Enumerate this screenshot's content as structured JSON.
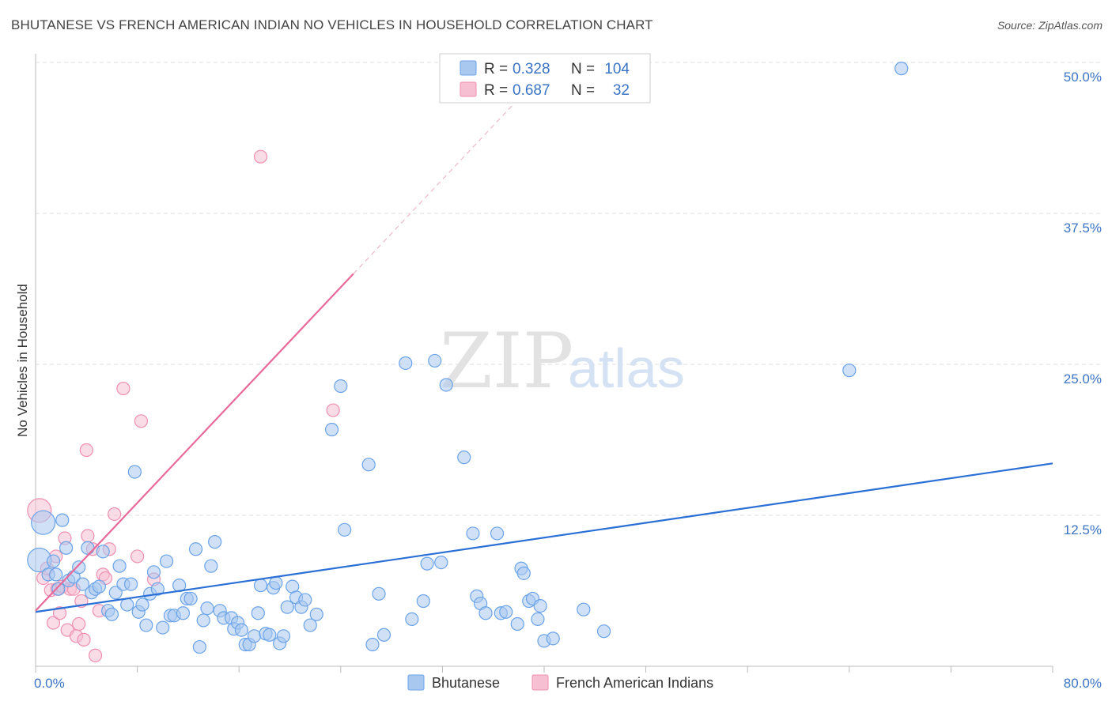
{
  "header": {
    "title": "BHUTANESE VS FRENCH AMERICAN INDIAN NO VEHICLES IN HOUSEHOLD CORRELATION CHART",
    "source": "Source: ZipAtlas.com"
  },
  "watermark": {
    "zip": "ZIP",
    "atlas": "atlas"
  },
  "legend": {
    "rows": [
      {
        "r_label": "R =",
        "r_value": "0.328",
        "n_label": "N =",
        "n_value": "104",
        "color": "#6aa3e8"
      },
      {
        "r_label": "R =",
        "r_value": "0.687",
        "n_label": "N =",
        "n_value": "32",
        "color": "#f08fb0"
      }
    ]
  },
  "bottom_legend": [
    "Bhutanese",
    "French American Indians"
  ],
  "colors": {
    "blue_fill": "#a9c8f0",
    "blue_stroke": "#6aa3e8",
    "blue_line": "#2a6fd6",
    "pink_fill": "#f6bfd2",
    "pink_stroke": "#ee8fb2",
    "pink_line": "#e8699a",
    "grid": "#dddddd",
    "tick_text": "#3a74c4"
  },
  "chart_data": {
    "type": "scatter",
    "title": "BHUTANESE VS FRENCH AMERICAN INDIAN NO VEHICLES IN HOUSEHOLD CORRELATION CHART",
    "xlabel": "",
    "ylabel": "No Vehicles in Household",
    "xlim": [
      0,
      80
    ],
    "ylim": [
      0,
      50
    ],
    "x_tick_labels": [
      "0.0%",
      "80.0%"
    ],
    "y_ticks": [
      12.5,
      25,
      37.5,
      50
    ],
    "y_tick_labels": [
      "12.5%",
      "25.0%",
      "37.5%",
      "50.0%"
    ],
    "grid": true,
    "legend_position": "top-center",
    "series": [
      {
        "name": "Bhutanese",
        "r": 0.328,
        "n": 104,
        "trend": {
          "x": [
            0,
            80
          ],
          "y": [
            4.5,
            16.8
          ]
        },
        "points": [
          [
            0.3,
            8.8,
            "big"
          ],
          [
            0.6,
            11.9,
            "big"
          ],
          [
            1.0,
            7.6
          ],
          [
            1.4,
            8.7
          ],
          [
            1.6,
            7.6
          ],
          [
            1.8,
            6.4
          ],
          [
            2.1,
            12.1
          ],
          [
            2.4,
            9.8
          ],
          [
            2.6,
            7.1
          ],
          [
            3.0,
            7.4
          ],
          [
            3.4,
            8.2
          ],
          [
            3.7,
            6.8
          ],
          [
            4.1,
            9.8
          ],
          [
            4.4,
            6.1
          ],
          [
            4.7,
            6.4
          ],
          [
            5.0,
            6.6
          ],
          [
            5.3,
            9.5
          ],
          [
            5.7,
            4.6
          ],
          [
            6.0,
            4.3
          ],
          [
            6.3,
            6.1
          ],
          [
            6.6,
            8.3
          ],
          [
            6.9,
            6.8
          ],
          [
            7.2,
            5.1
          ],
          [
            7.5,
            6.8
          ],
          [
            7.8,
            16.1
          ],
          [
            8.1,
            4.5
          ],
          [
            8.4,
            5.1
          ],
          [
            8.7,
            3.4
          ],
          [
            9.0,
            6.0
          ],
          [
            9.3,
            7.8
          ],
          [
            9.6,
            6.4
          ],
          [
            10.0,
            3.2
          ],
          [
            10.3,
            8.7
          ],
          [
            10.6,
            4.2
          ],
          [
            10.9,
            4.2
          ],
          [
            11.3,
            6.7
          ],
          [
            11.6,
            4.4
          ],
          [
            11.9,
            5.6
          ],
          [
            12.2,
            5.6
          ],
          [
            12.6,
            9.7
          ],
          [
            12.9,
            1.6
          ],
          [
            13.2,
            3.8
          ],
          [
            13.5,
            4.8
          ],
          [
            13.8,
            8.3
          ],
          [
            14.1,
            10.3
          ],
          [
            14.5,
            4.6
          ],
          [
            14.8,
            4.0
          ],
          [
            15.4,
            4.0
          ],
          [
            15.6,
            3.1
          ],
          [
            15.9,
            3.6
          ],
          [
            16.2,
            3.0
          ],
          [
            16.5,
            1.8
          ],
          [
            16.8,
            1.8
          ],
          [
            17.2,
            2.5
          ],
          [
            17.5,
            4.4
          ],
          [
            17.7,
            6.7
          ],
          [
            18.1,
            2.7
          ],
          [
            18.4,
            2.6
          ],
          [
            18.7,
            6.5
          ],
          [
            18.9,
            6.9
          ],
          [
            19.2,
            1.9
          ],
          [
            19.5,
            2.5
          ],
          [
            19.8,
            4.9
          ],
          [
            20.2,
            6.6
          ],
          [
            20.5,
            5.7
          ],
          [
            20.9,
            4.9
          ],
          [
            21.2,
            5.5
          ],
          [
            21.6,
            3.4
          ],
          [
            22.1,
            4.3
          ],
          [
            23.3,
            19.6
          ],
          [
            24.0,
            23.2
          ],
          [
            24.3,
            11.3
          ],
          [
            26.2,
            16.7
          ],
          [
            26.5,
            1.8
          ],
          [
            27.0,
            6.0
          ],
          [
            27.4,
            2.6
          ],
          [
            29.1,
            25.1
          ],
          [
            29.6,
            3.9
          ],
          [
            30.5,
            5.4
          ],
          [
            30.8,
            8.5
          ],
          [
            31.4,
            25.3
          ],
          [
            32.3,
            23.3
          ],
          [
            31.9,
            8.6
          ],
          [
            33.7,
            17.3
          ],
          [
            34.4,
            11.0
          ],
          [
            34.7,
            5.8
          ],
          [
            35.0,
            5.2
          ],
          [
            35.4,
            4.4
          ],
          [
            36.3,
            11.0
          ],
          [
            36.6,
            4.4
          ],
          [
            37.0,
            4.5
          ],
          [
            37.9,
            3.5
          ],
          [
            38.2,
            8.1
          ],
          [
            38.4,
            7.7
          ],
          [
            38.8,
            5.4
          ],
          [
            39.1,
            5.6
          ],
          [
            39.5,
            3.9
          ],
          [
            39.7,
            5.0
          ],
          [
            40.0,
            2.1
          ],
          [
            40.7,
            2.3
          ],
          [
            43.1,
            4.7
          ],
          [
            44.7,
            2.9
          ],
          [
            64.0,
            24.5
          ],
          [
            68.1,
            49.5
          ]
        ]
      },
      {
        "name": "French American Indians",
        "r": 0.687,
        "n": 32,
        "trend": {
          "x": [
            0,
            25
          ],
          "y": [
            4.6,
            32.5
          ]
        },
        "trend_dashed": {
          "x": [
            25,
            38
          ],
          "y": [
            32.5,
            47.0
          ]
        },
        "points": [
          [
            0.3,
            12.9,
            "big"
          ],
          [
            0.6,
            7.3
          ],
          [
            0.9,
            8.1
          ],
          [
            1.2,
            6.3
          ],
          [
            1.4,
            3.6
          ],
          [
            1.6,
            9.1
          ],
          [
            1.7,
            6.4
          ],
          [
            1.9,
            4.4
          ],
          [
            2.1,
            6.6
          ],
          [
            2.3,
            10.6
          ],
          [
            2.5,
            3.0
          ],
          [
            2.7,
            6.4
          ],
          [
            3.0,
            6.4
          ],
          [
            3.2,
            2.5
          ],
          [
            3.4,
            3.5
          ],
          [
            3.6,
            5.4
          ],
          [
            3.8,
            2.2
          ],
          [
            4.0,
            17.9
          ],
          [
            4.1,
            10.8
          ],
          [
            4.5,
            9.7
          ],
          [
            4.7,
            0.9
          ],
          [
            5.0,
            4.6
          ],
          [
            5.3,
            7.6
          ],
          [
            5.5,
            7.3
          ],
          [
            5.8,
            9.7
          ],
          [
            6.2,
            12.6
          ],
          [
            6.9,
            23.0
          ],
          [
            8.0,
            9.1
          ],
          [
            8.3,
            20.3
          ],
          [
            9.3,
            7.2
          ],
          [
            17.7,
            42.2
          ],
          [
            23.4,
            21.2
          ]
        ]
      }
    ]
  }
}
